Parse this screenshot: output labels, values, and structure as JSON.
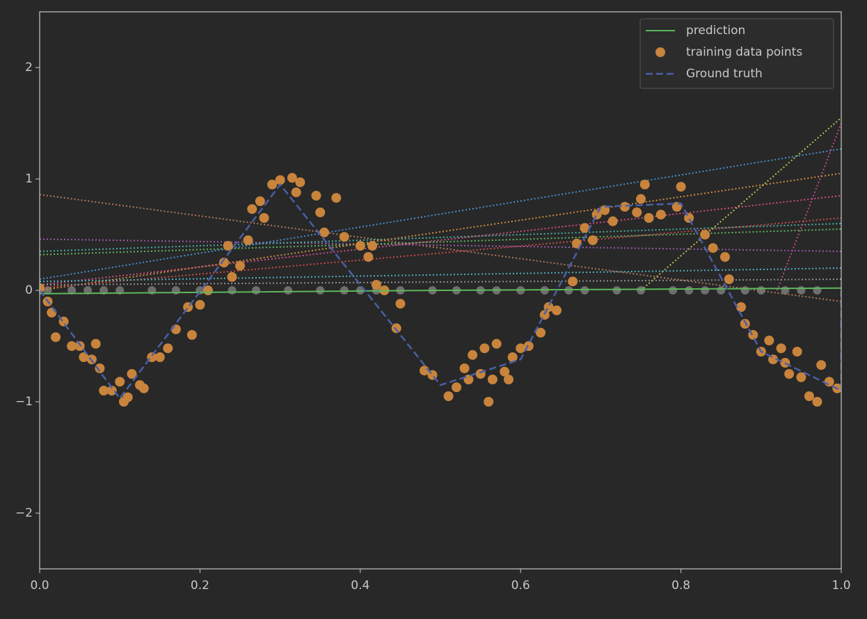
{
  "chart_data": {
    "type": "scatter",
    "xlim": [
      0,
      1
    ],
    "ylim": [
      -2.5,
      2.5
    ],
    "xticks": [
      {
        "value": 0,
        "label": "0.0"
      },
      0.2,
      0.4,
      0.6,
      0.8,
      {
        "value": 1,
        "label": "1.0"
      }
    ],
    "yticks": [
      {
        "value": -2,
        "label": "−2"
      },
      {
        "value": -1,
        "label": "−1"
      },
      0,
      1,
      2
    ],
    "legend": "upper right",
    "series": [
      {
        "name": "prediction",
        "kind": "line",
        "color": "#5cb85c",
        "x": [
          0,
          0.5,
          1
        ],
        "values": [
          -0.03,
          0.0,
          0.02
        ]
      },
      {
        "name": "training data points",
        "kind": "points",
        "color": "#c8843c",
        "x": [
          0.0,
          0.01,
          0.015,
          0.02,
          0.03,
          0.04,
          0.05,
          0.055,
          0.065,
          0.07,
          0.075,
          0.08,
          0.09,
          0.1,
          0.105,
          0.11,
          0.115,
          0.125,
          0.13,
          0.14,
          0.15,
          0.16,
          0.17,
          0.185,
          0.19,
          0.2,
          0.21,
          0.23,
          0.235,
          0.24,
          0.25,
          0.26,
          0.265,
          0.275,
          0.28,
          0.29,
          0.3,
          0.315,
          0.32,
          0.325,
          0.345,
          0.35,
          0.355,
          0.37,
          0.38,
          0.4,
          0.41,
          0.415,
          0.42,
          0.43,
          0.445,
          0.45,
          0.48,
          0.49,
          0.51,
          0.52,
          0.53,
          0.535,
          0.54,
          0.55,
          0.555,
          0.56,
          0.565,
          0.57,
          0.58,
          0.585,
          0.59,
          0.6,
          0.61,
          0.625,
          0.63,
          0.635,
          0.645,
          0.665,
          0.67,
          0.68,
          0.69,
          0.695,
          0.705,
          0.715,
          0.73,
          0.745,
          0.75,
          0.755,
          0.76,
          0.775,
          0.795,
          0.8,
          0.81,
          0.83,
          0.84,
          0.855,
          0.86,
          0.875,
          0.88,
          0.89,
          0.9,
          0.91,
          0.915,
          0.925,
          0.93,
          0.935,
          0.945,
          0.95,
          0.96,
          0.97,
          0.975,
          0.985,
          0.995
        ],
        "values": [
          0.02,
          -0.1,
          -0.2,
          -0.42,
          -0.28,
          -0.5,
          -0.5,
          -0.6,
          -0.62,
          -0.48,
          -0.7,
          -0.9,
          -0.9,
          -0.82,
          -1.0,
          -0.96,
          -0.75,
          -0.85,
          -0.88,
          -0.6,
          -0.6,
          -0.52,
          -0.35,
          -0.15,
          -0.4,
          -0.13,
          0.0,
          0.25,
          0.4,
          0.12,
          0.22,
          0.45,
          0.73,
          0.8,
          0.65,
          0.95,
          0.99,
          1.01,
          0.88,
          0.97,
          0.85,
          0.7,
          0.52,
          0.83,
          0.48,
          0.4,
          0.3,
          0.4,
          0.05,
          0.0,
          -0.34,
          -0.12,
          -0.72,
          -0.76,
          -0.95,
          -0.87,
          -0.7,
          -0.8,
          -0.58,
          -0.75,
          -0.52,
          -1.0,
          -0.8,
          -0.48,
          -0.73,
          -0.8,
          -0.6,
          -0.52,
          -0.5,
          -0.38,
          -0.22,
          -0.15,
          -0.18,
          0.08,
          0.42,
          0.56,
          0.45,
          0.68,
          0.72,
          0.62,
          0.75,
          0.7,
          0.82,
          0.95,
          0.65,
          0.68,
          0.75,
          0.93,
          0.65,
          0.5,
          0.38,
          0.3,
          0.1,
          -0.15,
          -0.3,
          -0.4,
          -0.55,
          -0.45,
          -0.62,
          -0.52,
          -0.65,
          -0.75,
          -0.55,
          -0.78,
          -0.95,
          -1.0,
          -0.67,
          -0.82,
          -0.88
        ]
      },
      {
        "name": "Ground truth",
        "kind": "dashed",
        "color": "#4a5fa8",
        "x": [
          0,
          0.1,
          0.3,
          0.5,
          0.6,
          0.7,
          0.8,
          0.9,
          1.0,
          1.0
        ],
        "values": [
          0.0,
          -0.97,
          0.95,
          -0.85,
          -0.62,
          0.75,
          0.78,
          -0.55,
          -0.9,
          0.0
        ]
      }
    ],
    "reference_points": {
      "color": "#6e6e6e",
      "x": [
        0.01,
        0.04,
        0.06,
        0.08,
        0.1,
        0.14,
        0.17,
        0.2,
        0.24,
        0.27,
        0.31,
        0.35,
        0.38,
        0.4,
        0.42,
        0.45,
        0.49,
        0.52,
        0.55,
        0.57,
        0.6,
        0.63,
        0.66,
        0.68,
        0.72,
        0.75,
        0.79,
        0.81,
        0.83,
        0.85,
        0.88,
        0.9,
        0.93,
        0.95,
        0.97
      ],
      "values": [
        0,
        0,
        0,
        0,
        0,
        0,
        0,
        0,
        0,
        0,
        0,
        0,
        0,
        0,
        0,
        0,
        0,
        0,
        0,
        0,
        0,
        0,
        0,
        0,
        0,
        0,
        0,
        0,
        0,
        0,
        0,
        0,
        0,
        0,
        0
      ]
    },
    "dotted_lines": [
      {
        "color": "#b07a5a",
        "x": [
          0,
          1
        ],
        "values": [
          0.86,
          -0.1
        ]
      },
      {
        "color": "#9a5aa8",
        "x": [
          0,
          1
        ],
        "values": [
          0.46,
          0.35
        ]
      },
      {
        "color": "#4ab0a0",
        "x": [
          0,
          1
        ],
        "values": [
          0.35,
          0.6
        ]
      },
      {
        "color": "#60b860",
        "x": [
          0,
          1
        ],
        "values": [
          0.32,
          0.55
        ]
      },
      {
        "color": "#4a90d0",
        "x": [
          0,
          1
        ],
        "values": [
          0.1,
          1.27
        ]
      },
      {
        "color": "#d09040",
        "x": [
          0,
          1
        ],
        "values": [
          0.0,
          1.05
        ]
      },
      {
        "color": "#d05080",
        "x": [
          0,
          1
        ],
        "values": [
          0.05,
          0.85
        ]
      },
      {
        "color": "#d04a4a",
        "x": [
          0,
          1
        ],
        "values": [
          0.02,
          0.65
        ]
      },
      {
        "color": "#c0c050",
        "x": [
          0.75,
          1
        ],
        "values": [
          0.0,
          1.55
        ]
      },
      {
        "color": "#c04a90",
        "x": [
          0.92,
          1
        ],
        "values": [
          0.0,
          1.5
        ]
      },
      {
        "color": "#50b0c0",
        "x": [
          0,
          1
        ],
        "values": [
          0.08,
          0.2
        ]
      },
      {
        "color": "#909090",
        "x": [
          0,
          1
        ],
        "values": [
          0.05,
          0.1
        ]
      }
    ]
  }
}
